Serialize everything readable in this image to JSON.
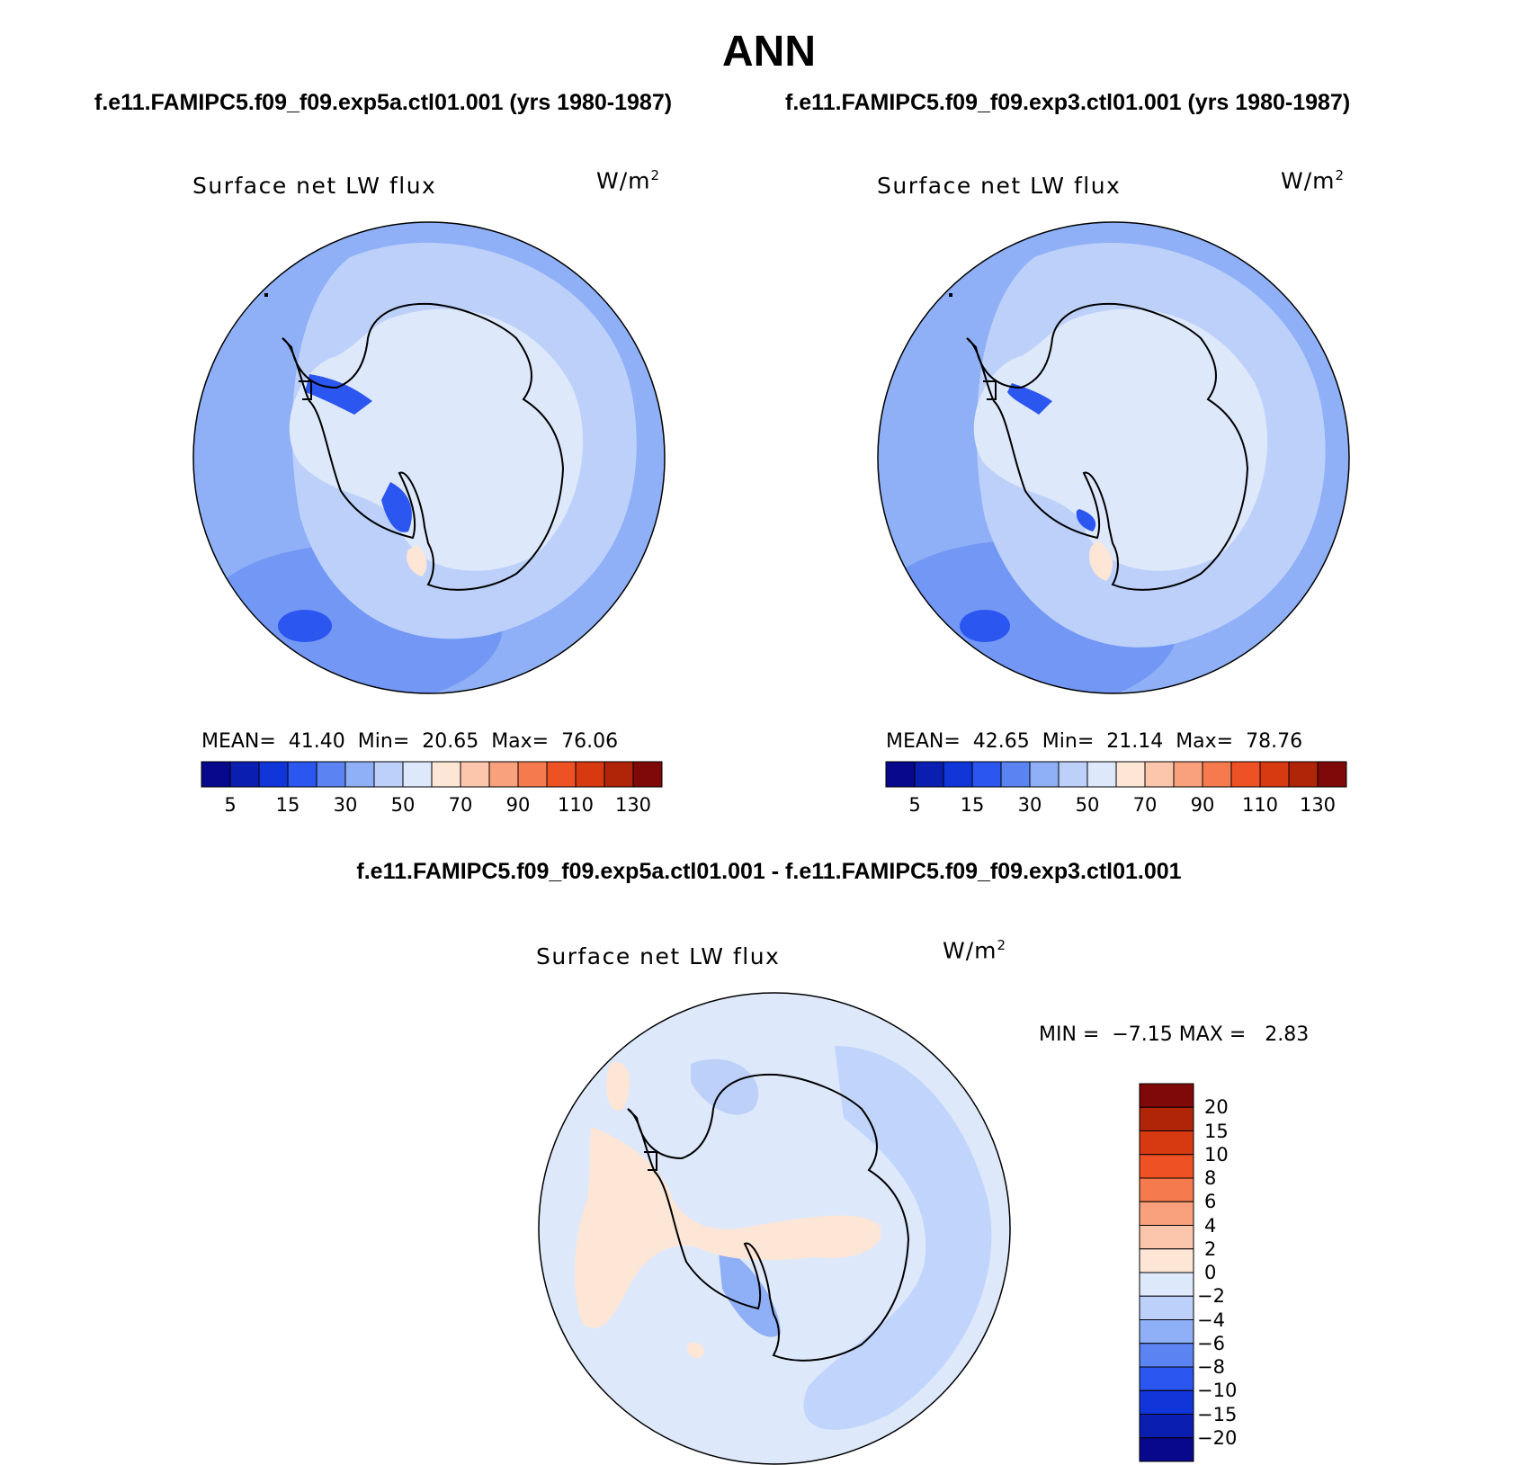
{
  "main_title": "ANN",
  "case_titles": [
    "f.e11.FAMIPC5.f09_f09.exp5a.ctl01.001 (yrs 1980-1987)",
    "f.e11.FAMIPC5.f09_f09.exp3.ctl01.001 (yrs 1980-1987)"
  ],
  "diff_title": "f.e11.FAMIPC5.f09_f09.exp5a.ctl01.001 - f.e11.FAMIPC5.f09_f09.exp3.ctl01.001",
  "panels": [
    {
      "title": "Surface net LW flux",
      "units": "W/m",
      "units_exp": "2",
      "stats": "MEAN=  41.40  Min=  20.65  Max=  76.06"
    },
    {
      "title": "Surface net LW flux",
      "units": "W/m",
      "units_exp": "2",
      "stats": "MEAN=  42.65  Min=  21.14  Max=  78.76"
    },
    {
      "title": "Surface net LW flux",
      "units": "W/m",
      "units_exp": "2",
      "stats": "MIN =  −7.15 MAX =   2.83"
    }
  ],
  "abs_colorbar": {
    "colors": [
      "#08088c",
      "#0a1fb0",
      "#1035d8",
      "#2c56f0",
      "#5b84f2",
      "#8fb0f6",
      "#bcd0fa",
      "#dde8fb",
      "#fde6d6",
      "#fbc6ab",
      "#f8a17c",
      "#f57b4e",
      "#ee5224",
      "#d73a10",
      "#b02408",
      "#7f0808"
    ],
    "labels": [
      "5",
      "15",
      "30",
      "50",
      "70",
      "90",
      "110",
      "130"
    ]
  },
  "diff_colorbar": {
    "colors_top_to_bottom": [
      "#7f0808",
      "#b02408",
      "#d73a10",
      "#ee5224",
      "#f57b4e",
      "#f8a17c",
      "#fbc6ab",
      "#fde6d6",
      "#dde8fb",
      "#bcd0fa",
      "#8fb0f6",
      "#5b84f2",
      "#2c56f0",
      "#1035d8",
      "#0a1fb0",
      "#08088c"
    ],
    "labels": [
      "20",
      "15",
      "10",
      "8",
      "6",
      "4",
      "2",
      "0",
      "−2",
      "−4",
      "−6",
      "−8",
      "−10",
      "−15",
      "−20"
    ]
  },
  "map_colors": {
    "ocean_abs": "#8fb0f6",
    "ocean_abs_dark": "#5b84f2",
    "band_abs": "#bcd0fa",
    "ice_abs": "#dde8fb",
    "ocean_diff": "#dde8fb",
    "diff_neg": "#bcd0fa",
    "diff_pos": "#fde6d6",
    "coast": "#000000"
  }
}
